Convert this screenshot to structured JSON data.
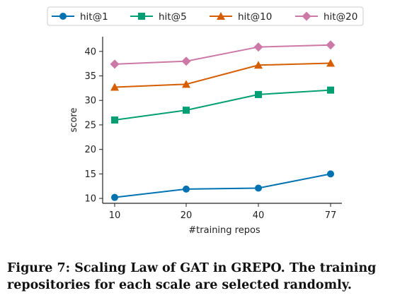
{
  "chart_data": {
    "type": "line",
    "categories": [
      "10",
      "20",
      "40",
      "77"
    ],
    "xlabel": "#training repos",
    "ylabel": "score",
    "ylim": [
      9,
      43
    ],
    "yticks": [
      10,
      15,
      20,
      25,
      30,
      35,
      40
    ],
    "grid": false,
    "legend": "top (outside plot, single row)",
    "series": [
      {
        "name": "hit@1",
        "values": [
          10.2,
          11.9,
          12.1,
          15.0
        ],
        "color": "#0072b2",
        "marker": "circle"
      },
      {
        "name": "hit@5",
        "values": [
          26.0,
          28.0,
          31.2,
          32.1
        ],
        "color": "#009e73",
        "marker": "square"
      },
      {
        "name": "hit@10",
        "values": [
          32.7,
          33.3,
          37.2,
          37.6
        ],
        "color": "#d55e00",
        "marker": "triangle"
      },
      {
        "name": "hit@20",
        "values": [
          37.4,
          38.0,
          40.9,
          41.3
        ],
        "color": "#cc79a7",
        "marker": "diamond"
      }
    ]
  },
  "caption": "Figure 7: Scaling Law of GAT in GREPO. The training repositories for each scale are selected randomly."
}
